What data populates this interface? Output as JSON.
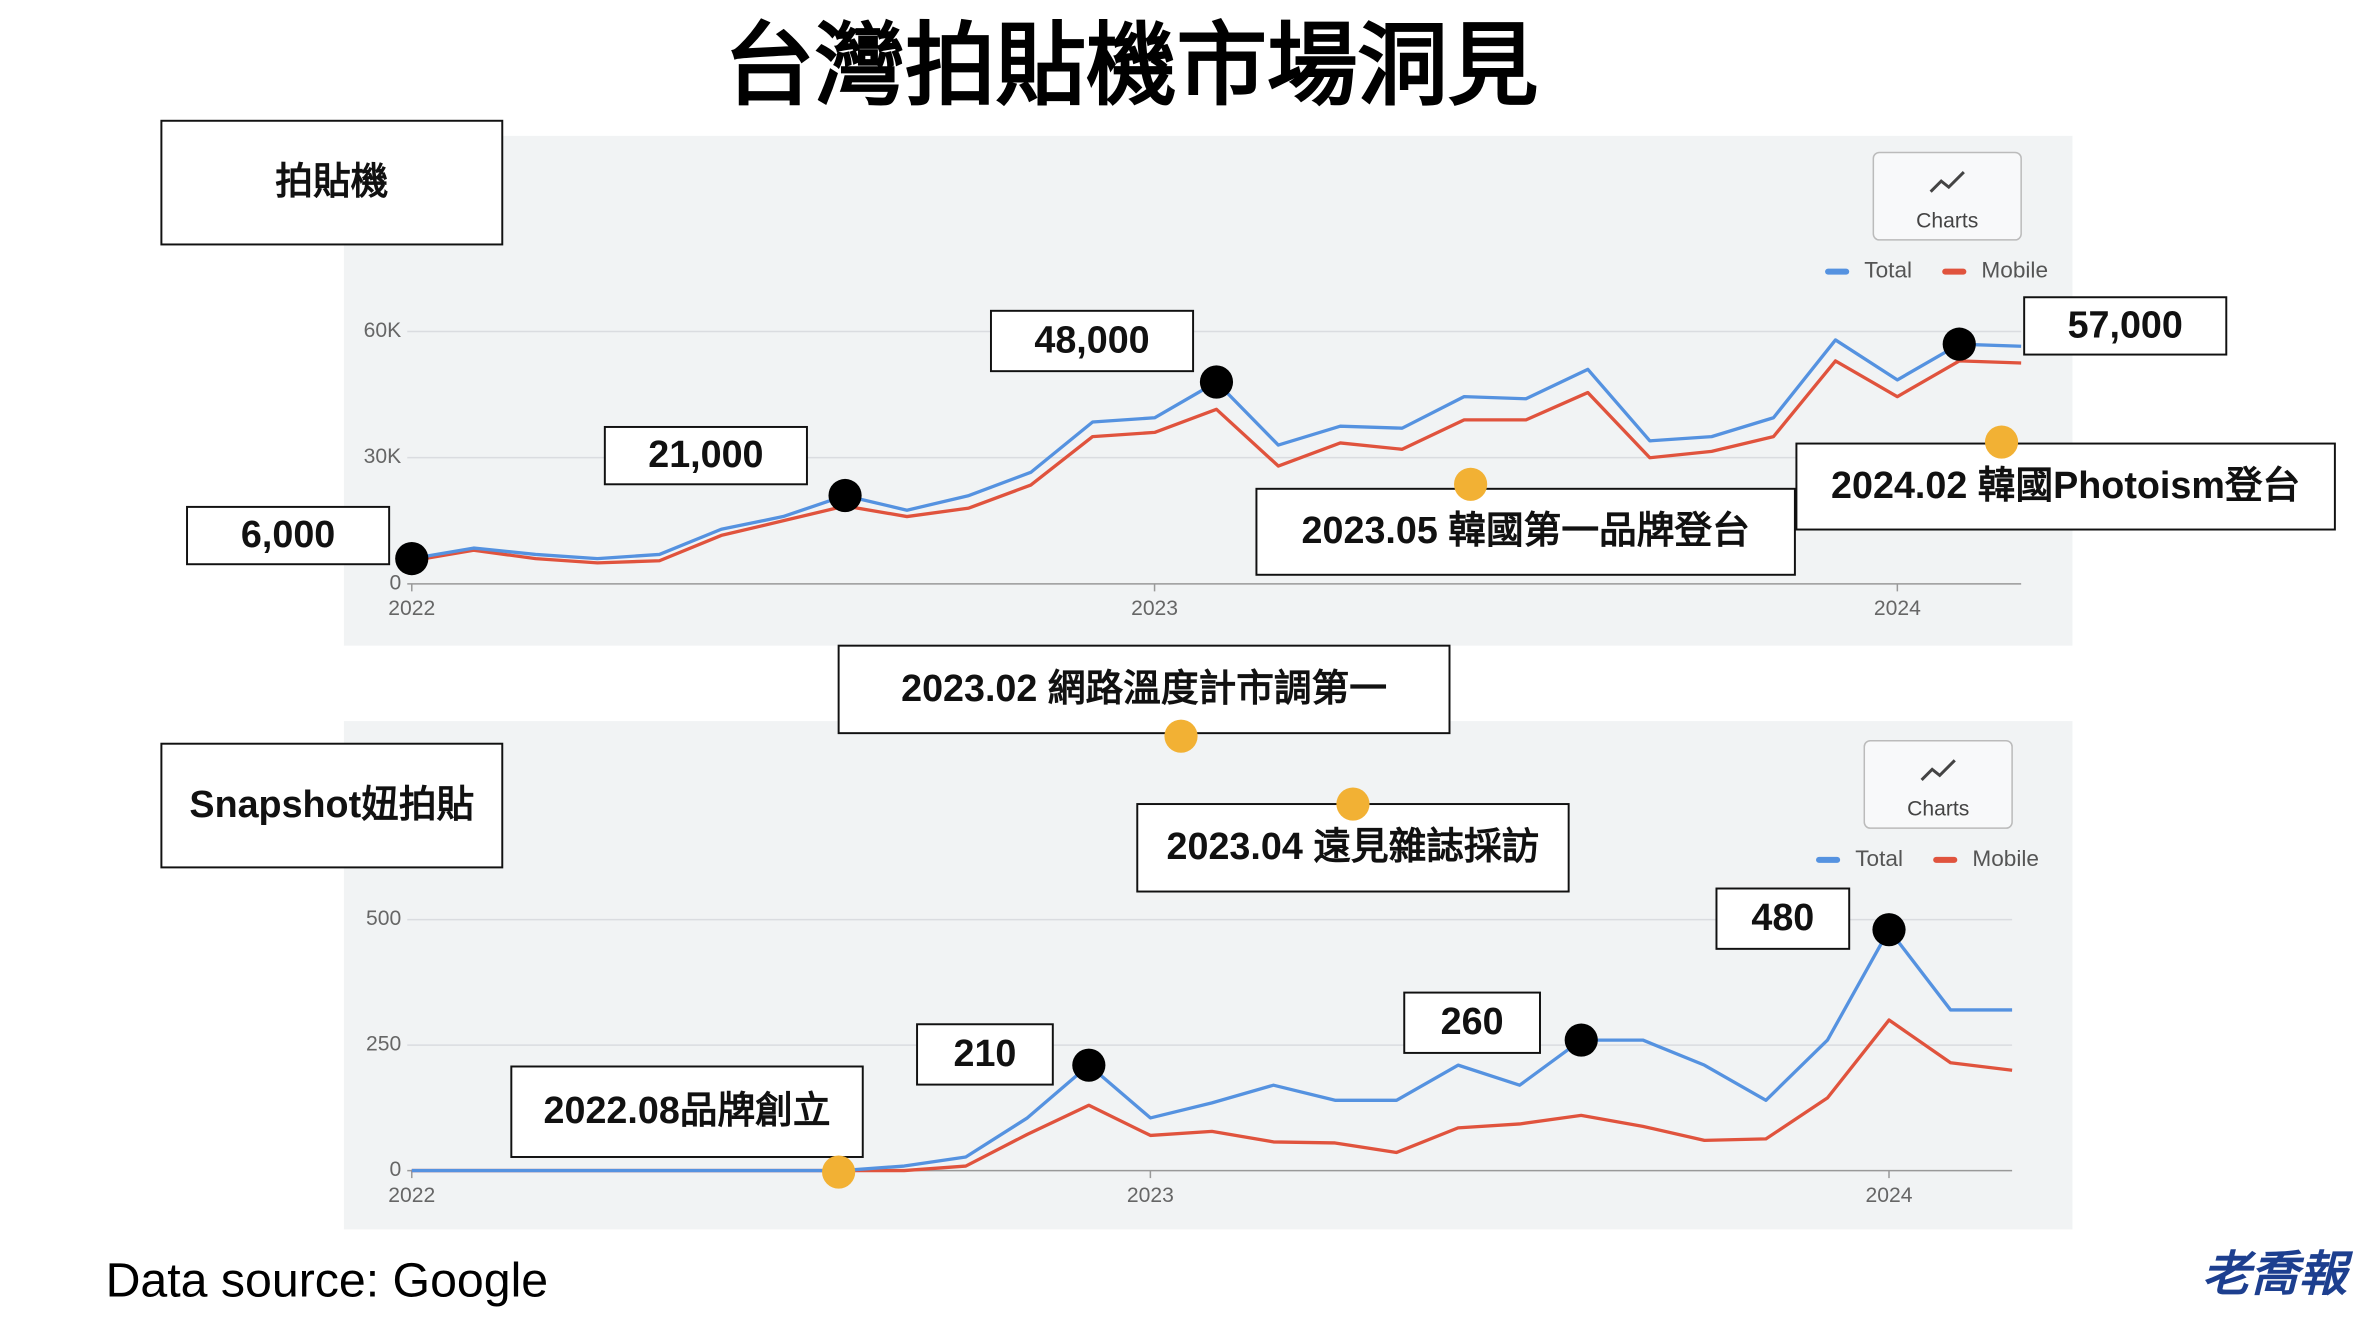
{
  "title": "台灣拍貼機市場洞見",
  "source": "Data source: Google",
  "logo": "老喬報",
  "events": [
    "2023.05 韓國第一品牌登台",
    "2024.02 韓國Photoism登台",
    "2023.02 網路溫度計市調第一",
    "2023.04 遠見雜誌採訪",
    "2022.08品牌創立"
  ],
  "chart_data": [
    {
      "type": "line",
      "title": "拍貼機",
      "toolbar_label": "Charts",
      "categories": [
        "2022",
        null,
        null,
        null,
        null,
        null,
        null,
        null,
        null,
        null,
        null,
        null,
        "2023",
        null,
        null,
        null,
        null,
        null,
        null,
        null,
        null,
        null,
        null,
        null,
        "2024",
        null,
        null
      ],
      "ylim": [
        0,
        66000
      ],
      "yticks": [
        0,
        {
          "value": 30000,
          "label": "30K"
        },
        {
          "value": 60000,
          "label": "60K"
        }
      ],
      "grid": true,
      "series": [
        {
          "name": "Total",
          "color": "#5592e0",
          "values": [
            6000,
            8500,
            7000,
            6000,
            7000,
            13000,
            16000,
            21000,
            17500,
            21000,
            26500,
            38500,
            39500,
            48000,
            33000,
            37500,
            37000,
            44500,
            44000,
            51000,
            34000,
            35000,
            39500,
            58000,
            48500,
            57000,
            56500
          ],
          "value_labels": [
            "6,000",
            null,
            null,
            null,
            null,
            null,
            null,
            "21,000",
            null,
            null,
            null,
            null,
            null,
            "48,000",
            null,
            null,
            null,
            null,
            null,
            null,
            null,
            null,
            null,
            null,
            null,
            "57,000",
            null
          ]
        },
        {
          "name": "Mobile",
          "color": "#e0533d",
          "values": [
            5500,
            8000,
            6000,
            5000,
            5500,
            11500,
            15000,
            18500,
            16000,
            18000,
            23500,
            35000,
            36000,
            41500,
            28000,
            33500,
            32000,
            39000,
            39000,
            45500,
            30000,
            31500,
            35000,
            53000,
            44500,
            53000,
            52500
          ]
        }
      ]
    },
    {
      "type": "line",
      "title": "Snapshot妞拍貼",
      "toolbar_label": "Charts",
      "categories": [
        "2022",
        null,
        null,
        null,
        null,
        null,
        null,
        null,
        null,
        null,
        null,
        null,
        "2023",
        null,
        null,
        null,
        null,
        null,
        null,
        null,
        null,
        null,
        null,
        null,
        "2024",
        null,
        null
      ],
      "ylim": [
        0,
        550
      ],
      "yticks": [
        0,
        250,
        500
      ],
      "grid": true,
      "series": [
        {
          "name": "Total",
          "color": "#5592e0",
          "values": [
            0,
            0,
            0,
            0,
            0,
            0,
            0,
            0,
            9,
            27,
            105,
            210,
            105,
            135,
            170,
            140,
            140,
            210,
            170,
            260,
            260,
            210,
            140,
            260,
            480,
            320,
            320
          ],
          "value_labels": [
            null,
            null,
            null,
            null,
            null,
            null,
            null,
            null,
            null,
            null,
            null,
            "210",
            null,
            null,
            null,
            null,
            null,
            null,
            null,
            "260",
            null,
            null,
            null,
            null,
            "480",
            null,
            null
          ]
        },
        {
          "name": "Mobile",
          "color": "#e0533d",
          "values": [
            0,
            0,
            0,
            0,
            0,
            0,
            0,
            0,
            0,
            9,
            72,
            130,
            70,
            78,
            57,
            55,
            36,
            85,
            93,
            110,
            88,
            60,
            63,
            145,
            300,
            215,
            200
          ]
        }
      ]
    }
  ]
}
